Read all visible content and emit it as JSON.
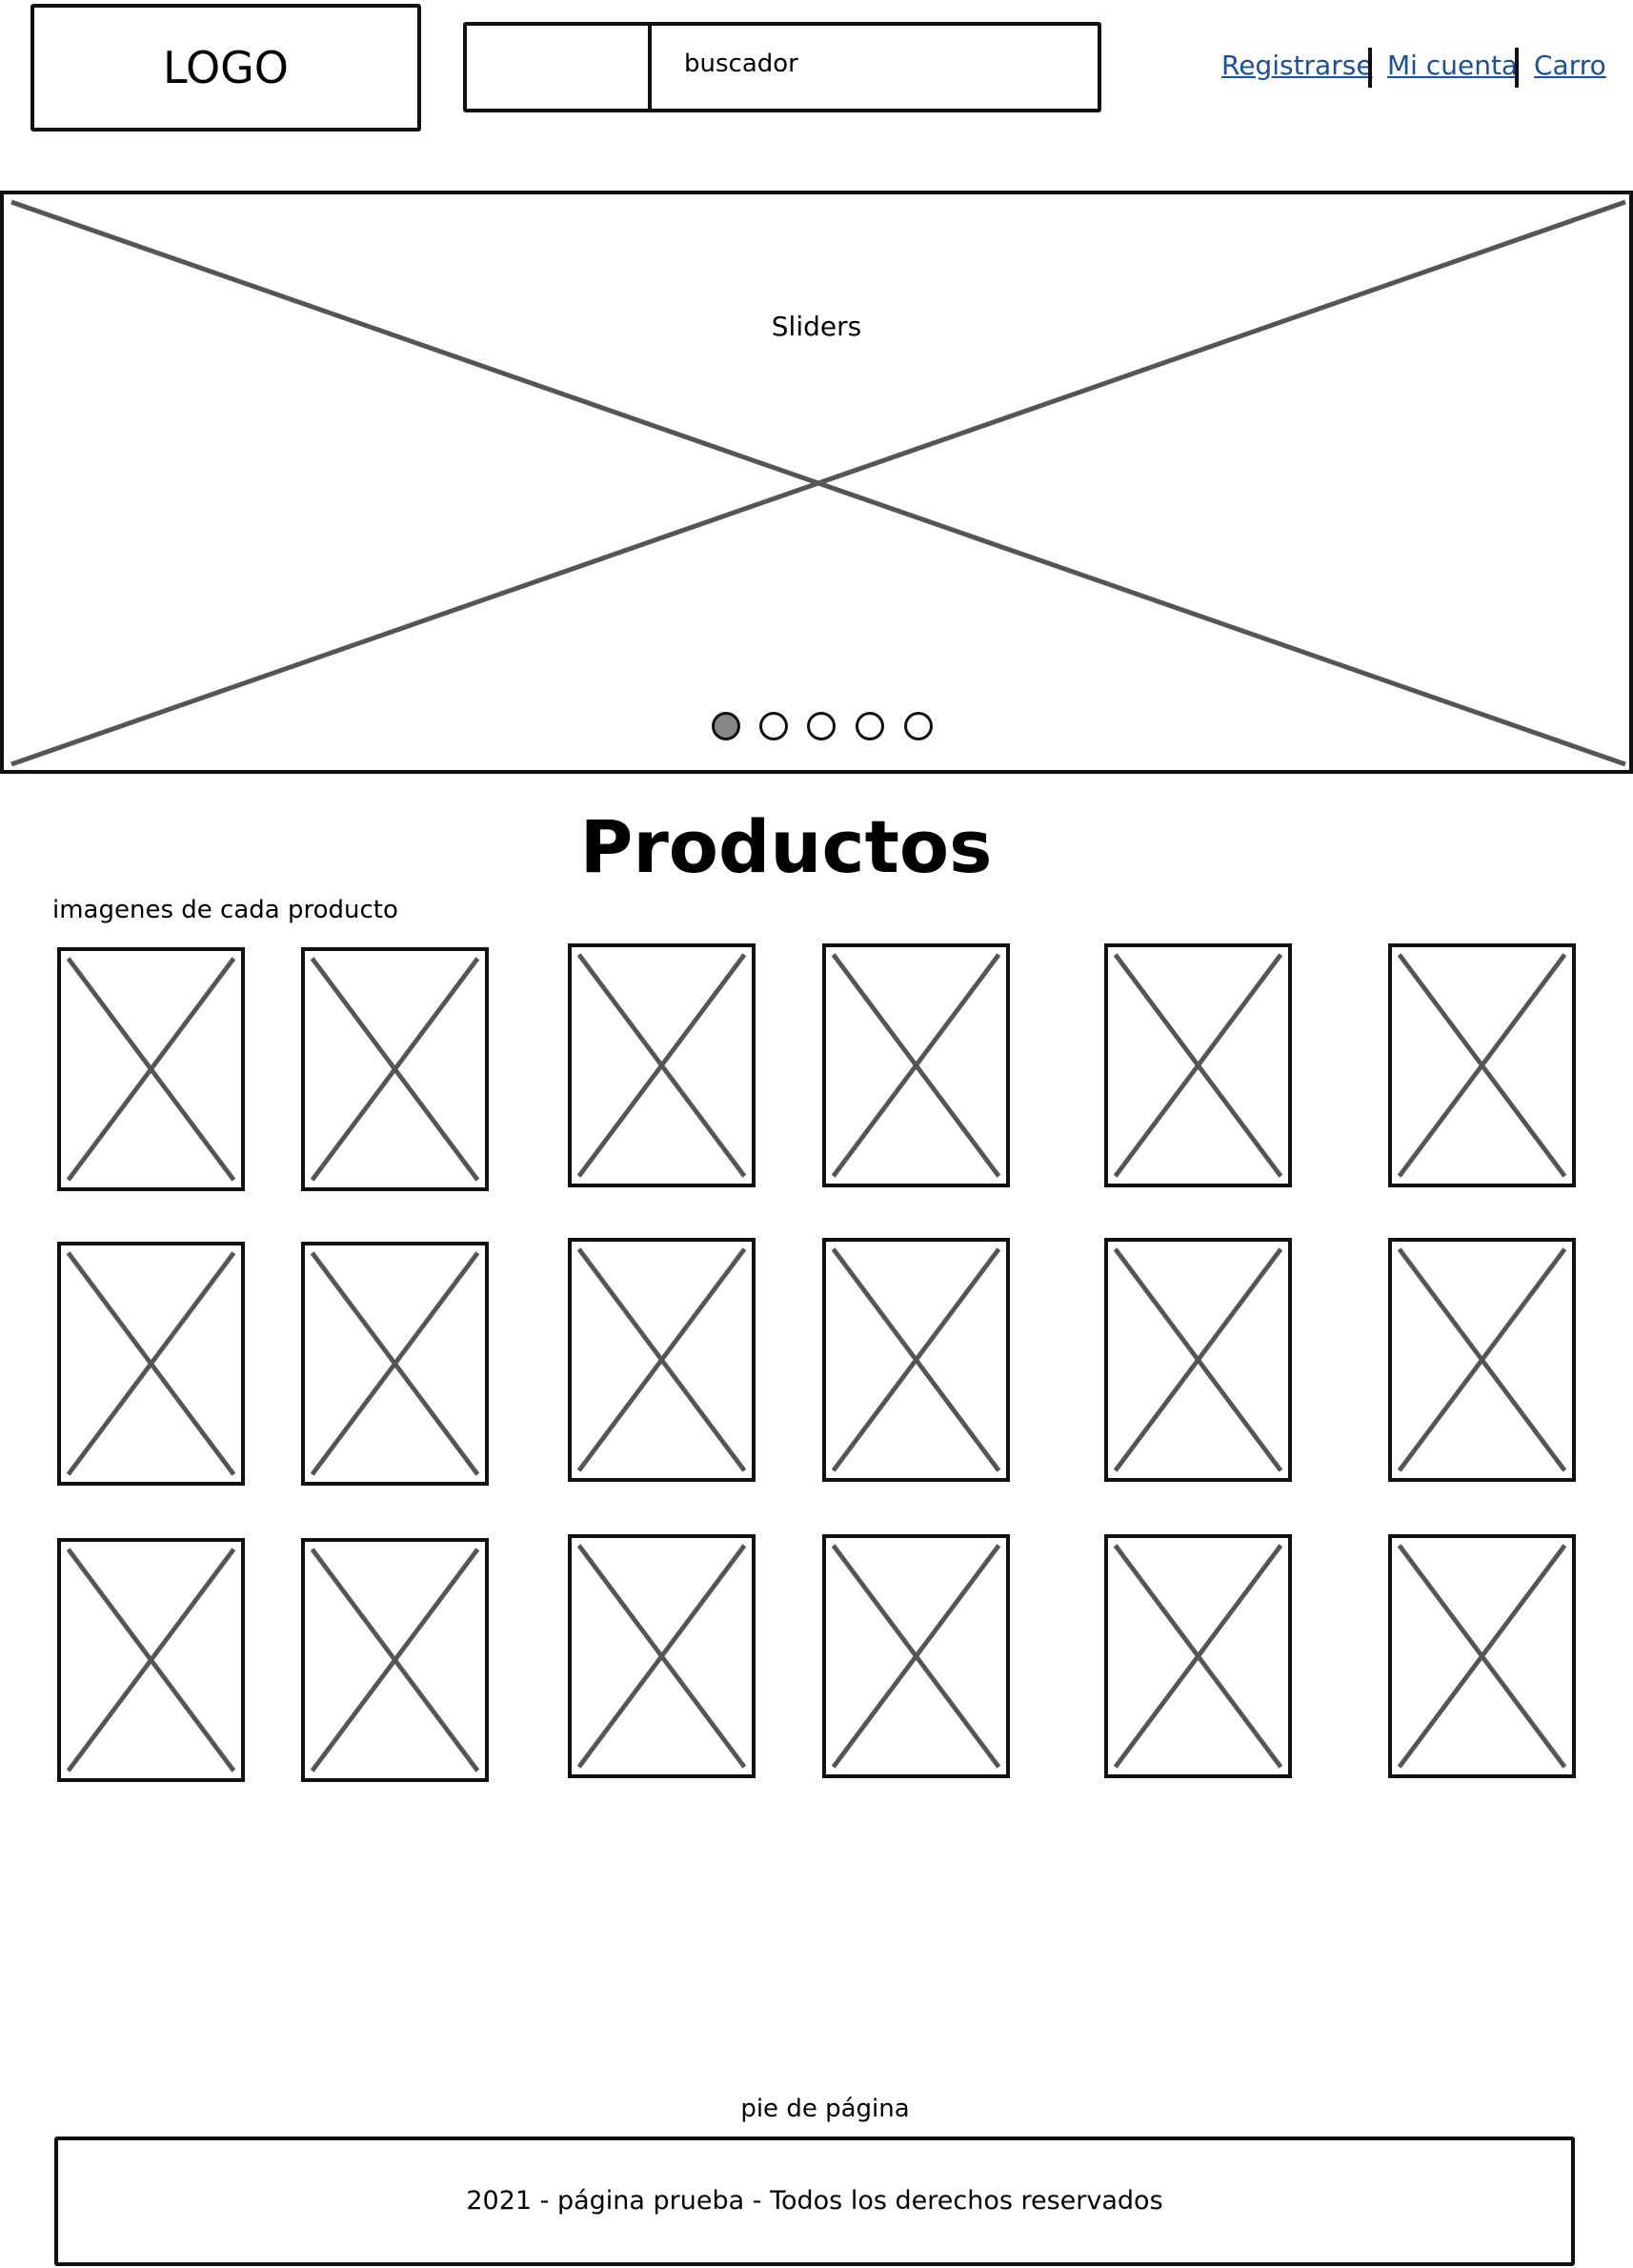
{
  "header": {
    "logo_text": "LOGO",
    "search_placeholder": "buscador",
    "nav": [
      {
        "label": "Registrarse"
      },
      {
        "label": "Mi cuenta"
      },
      {
        "label": "Carro"
      }
    ],
    "link_color": "#1a4f9c"
  },
  "slider": {
    "label": "Sliders",
    "dots_total": 5,
    "active_dot": 1,
    "active_dot_color": "#888888"
  },
  "products": {
    "title": "Productos",
    "subtitle": "imagenes de cada producto",
    "image_count": 18
  },
  "footer": {
    "label": "pie de página",
    "text": "2021 - página prueba - Todos los derechos reservados"
  }
}
